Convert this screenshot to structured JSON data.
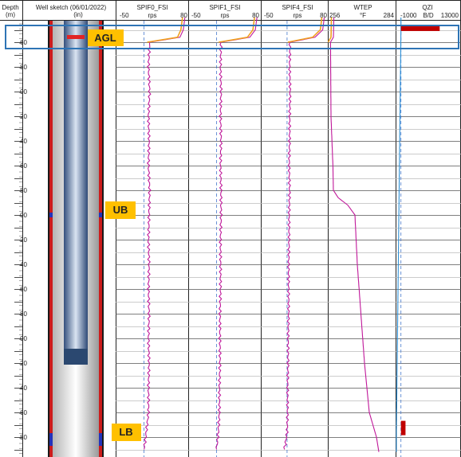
{
  "chart_data": {
    "type": "line",
    "depth_column": {
      "title": "Depth",
      "unit": "(m)"
    },
    "well_sketch": {
      "title": "Well sketch (06/01/2022)",
      "unit": "(in)"
    },
    "depth_ticks": [
      "60",
      "80",
      "00",
      "20",
      "40",
      "60",
      "80",
      "00",
      "20",
      "40",
      "60",
      "80",
      "00",
      "20",
      "40",
      "60",
      "80"
    ],
    "tracks": [
      {
        "name": "SPIF0_FSI",
        "unit": "rps",
        "min_label": "-50",
        "max_label": "80",
        "min": -50,
        "max": 80
      },
      {
        "name": "SPIF1_FSI",
        "unit": "rps",
        "min_label": "-50",
        "max_label": "80",
        "min": -50,
        "max": 80
      },
      {
        "name": "SPIF4_FSI",
        "unit": "rps",
        "min_label": "-50",
        "max_label": "80",
        "min": -50,
        "max": 80
      },
      {
        "name": "WTEP",
        "unit": "°F",
        "min_label": "256",
        "max_label": "284",
        "min": 256,
        "max": 284
      },
      {
        "name": "QZI",
        "unit": "B/D",
        "min_label": "-1000",
        "max_label": "13000",
        "min": -1000,
        "max": 13000
      }
    ],
    "depth_range": [
      0,
      17.6
    ],
    "series": {
      "SPIF0_FSI": [
        [
          0,
          74
        ],
        [
          0.5,
          71
        ],
        [
          0.8,
          65
        ],
        [
          1.0,
          10
        ],
        [
          2,
          8
        ],
        [
          3,
          10
        ],
        [
          4,
          8
        ],
        [
          5,
          9
        ],
        [
          6,
          8
        ],
        [
          7,
          10
        ],
        [
          8,
          9
        ],
        [
          9,
          8
        ],
        [
          10,
          9
        ],
        [
          11,
          8
        ],
        [
          12,
          9
        ],
        [
          13,
          8
        ],
        [
          14,
          9
        ],
        [
          15,
          8
        ],
        [
          16,
          8
        ],
        [
          16.8,
          4
        ],
        [
          17.5,
          0
        ]
      ],
      "SPIF1_FSI": [
        [
          0,
          73
        ],
        [
          0.5,
          70
        ],
        [
          0.8,
          60
        ],
        [
          1.0,
          8
        ],
        [
          2,
          7
        ],
        [
          3,
          8
        ],
        [
          4,
          7
        ],
        [
          5,
          8
        ],
        [
          6,
          7
        ],
        [
          7,
          8
        ],
        [
          8,
          8
        ],
        [
          9,
          7
        ],
        [
          10,
          7
        ],
        [
          11,
          7
        ],
        [
          12,
          6
        ],
        [
          13,
          6
        ],
        [
          14,
          6
        ],
        [
          15,
          5
        ],
        [
          16,
          5
        ],
        [
          16.8,
          3
        ],
        [
          17.5,
          0
        ]
      ],
      "SPIF4_FSI": [
        [
          0,
          73
        ],
        [
          0.5,
          70
        ],
        [
          0.8,
          55
        ],
        [
          1.0,
          6
        ],
        [
          2,
          5
        ],
        [
          3,
          6
        ],
        [
          4,
          5
        ],
        [
          5,
          5
        ],
        [
          6,
          4
        ],
        [
          7,
          5
        ],
        [
          8,
          4
        ],
        [
          9,
          4
        ],
        [
          10,
          3
        ],
        [
          11,
          3
        ],
        [
          12,
          3
        ],
        [
          13,
          2
        ],
        [
          14,
          2
        ],
        [
          15,
          1
        ],
        [
          16,
          1
        ],
        [
          16.8,
          0
        ],
        [
          17.5,
          -5
        ]
      ],
      "WTEP": [
        [
          0,
          258.2
        ],
        [
          0.8,
          258
        ],
        [
          1.0,
          256.8
        ],
        [
          4,
          257
        ],
        [
          6,
          257.8
        ],
        [
          7.0,
          258
        ],
        [
          7.3,
          260
        ],
        [
          7.6,
          264
        ],
        [
          8.0,
          267
        ],
        [
          10,
          268
        ],
        [
          12,
          269.5
        ],
        [
          14,
          271
        ],
        [
          16,
          273
        ],
        [
          17,
          276
        ],
        [
          17.6,
          277
        ]
      ],
      "QZI": [
        [
          0,
          0
        ],
        [
          0.5,
          0
        ],
        [
          16.8,
          -1000
        ],
        [
          17.6,
          -1000
        ]
      ],
      "QZI_bars": [
        [
          0.45,
          8500
        ],
        [
          16.6,
          1000
        ]
      ]
    },
    "annotations": [
      "AGL",
      "UB",
      "LB"
    ]
  }
}
